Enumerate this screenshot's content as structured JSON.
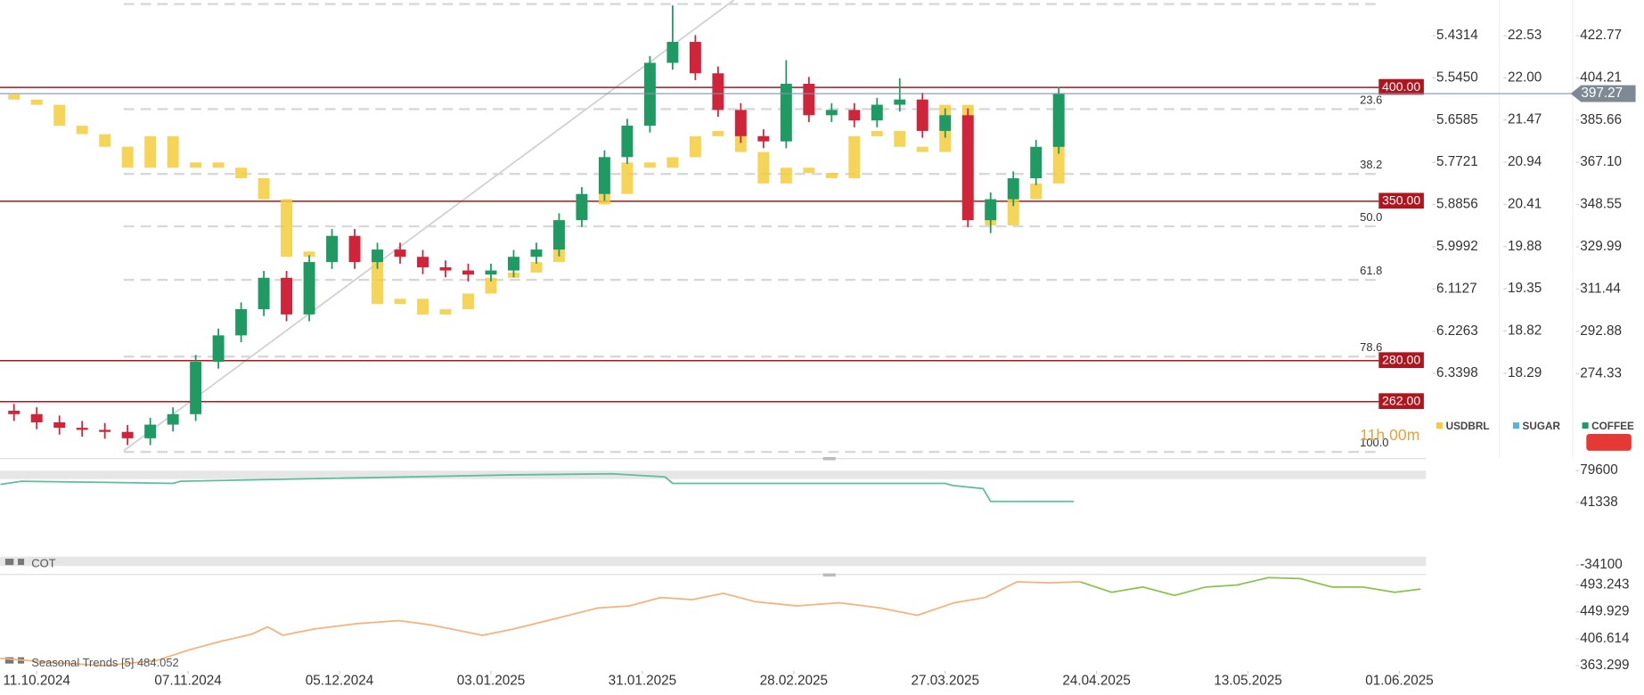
{
  "chart_data": [
    {
      "type": "candlestick",
      "x": [
        -3,
        0,
        3,
        6,
        9,
        12,
        15,
        18,
        21,
        24,
        27,
        30,
        33,
        36,
        39,
        42,
        45,
        48,
        51,
        54,
        57,
        60,
        63,
        66,
        69,
        72,
        75,
        78,
        81,
        84,
        87,
        90,
        93,
        96,
        99,
        102,
        105,
        108,
        111,
        114,
        117,
        120,
        123,
        126,
        129,
        132,
        135
      ],
      "xlim": [
        -4.85,
        183.5
      ],
      "xticks": [
        {
          "value": 0,
          "label": "11.10.2024"
        },
        {
          "value": 20,
          "label": "07.11.2024"
        },
        {
          "value": 40,
          "label": "05.12.2024"
        },
        {
          "value": 60,
          "label": "03.01.2025"
        },
        {
          "value": 80,
          "label": "31.01.2025"
        },
        {
          "value": 100,
          "label": "28.02.2025"
        },
        {
          "value": 120,
          "label": "27.03.2025"
        },
        {
          "value": 140,
          "label": "24.04.2025"
        },
        {
          "value": 160,
          "label": "13.05.2025"
        },
        {
          "value": 180,
          "label": "01.06.2025"
        }
      ],
      "series": [
        {
          "name": "USDBRL",
          "color": "#f5cd3a",
          "axis": "y2",
          "open": [
            5.59,
            5.6034,
            5.6175,
            5.6738,
            5.6964,
            5.7302,
            5.7866,
            5.702,
            5.7866,
            5.7725,
            5.7866,
            5.8148,
            5.8712,
            6.0262,
            6.0121,
            5.998,
            6.0121,
            6.1531,
            6.139,
            6.1813,
            6.1672,
            6.1249,
            6.0826,
            6.0685,
            6.0403,
            5.9275,
            5.8853,
            5.8571,
            5.7725,
            5.7866,
            5.7584,
            5.702,
            5.6879,
            5.7443,
            5.8289,
            5.7866,
            5.8007,
            5.8148,
            5.702,
            5.6879,
            5.7302,
            5.7443,
            5.6175,
            5.8853,
            5.9416,
            5.8712,
            5.8289
          ],
          "close": [
            5.6034,
            5.6175,
            5.6738,
            5.6964,
            5.7302,
            5.7866,
            5.702,
            5.7866,
            5.7725,
            5.7866,
            5.8148,
            5.8712,
            6.0262,
            6.0121,
            5.998,
            6.0121,
            6.1531,
            6.139,
            6.1813,
            6.1672,
            6.1249,
            6.0826,
            6.0685,
            6.0403,
            5.9275,
            5.8853,
            5.8571,
            5.7725,
            5.7866,
            5.7584,
            5.702,
            5.6879,
            5.7443,
            5.8289,
            5.7866,
            5.8007,
            5.8148,
            5.702,
            5.6879,
            5.7302,
            5.7443,
            5.6175,
            5.8853,
            5.9416,
            5.8712,
            5.8289,
            5.6738
          ]
        },
        {
          "name": "SUGAR",
          "color": "#4fb8e0",
          "axis": "y3"
        },
        {
          "name": "COFFEE",
          "color": "#1f9a62",
          "down_color": "#d0243a",
          "open": [
            258.0,
            256.5,
            252.9,
            250.5,
            249.6,
            248.7,
            245.9,
            251.9,
            256.5,
            279.5,
            291.1,
            302.6,
            316.4,
            300.3,
            323.3,
            334.8,
            323.3,
            328.8,
            325.6,
            321.0,
            319.6,
            317.8,
            319.6,
            325.6,
            328.8,
            341.7,
            353.2,
            369.4,
            383.2,
            410.8,
            420.0,
            406.2,
            390.1,
            378.6,
            376.3,
            401.6,
            387.8,
            390.1,
            385.5,
            392.4,
            394.7,
            380.9,
            387.8,
            341.7,
            350.9,
            360.1,
            373.9
          ],
          "high": [
            261.0,
            259.5,
            255.9,
            253.5,
            252.6,
            251.7,
            254.9,
            259.5,
            282.5,
            294.1,
            305.6,
            319.4,
            319.4,
            326.3,
            337.8,
            337.8,
            331.8,
            331.8,
            328.6,
            324.0,
            322.6,
            322.6,
            328.6,
            331.8,
            344.7,
            356.2,
            372.4,
            386.2,
            413.8,
            436.0,
            423.0,
            409.2,
            393.1,
            381.6,
            412.0,
            404.6,
            393.1,
            393.1,
            395.4,
            404.0,
            397.7,
            390.8,
            390.8,
            353.9,
            363.1,
            376.9,
            400.3
          ],
          "low": [
            253.5,
            249.9,
            247.5,
            246.6,
            245.7,
            242.9,
            242.9,
            248.9,
            253.5,
            276.5,
            288.1,
            299.6,
            297.3,
            297.3,
            320.3,
            320.3,
            320.3,
            322.6,
            318.0,
            316.6,
            314.8,
            314.8,
            316.6,
            322.6,
            325.8,
            338.7,
            350.2,
            366.4,
            380.2,
            407.8,
            403.2,
            387.1,
            375.6,
            373.3,
            373.3,
            384.8,
            384.8,
            382.5,
            382.5,
            389.4,
            377.9,
            377.9,
            338.7,
            336.0,
            347.9,
            357.1,
            370.9
          ],
          "close": [
            256.5,
            252.9,
            250.5,
            249.6,
            248.7,
            245.9,
            251.9,
            256.5,
            279.5,
            291.1,
            302.6,
            316.4,
            300.3,
            323.3,
            334.8,
            323.3,
            328.8,
            325.6,
            321.0,
            319.6,
            317.8,
            319.6,
            325.6,
            328.8,
            341.7,
            353.2,
            369.4,
            383.2,
            410.8,
            420.0,
            406.2,
            390.1,
            378.6,
            376.3,
            401.6,
            387.8,
            390.1,
            385.5,
            392.4,
            394.7,
            380.9,
            387.8,
            341.7,
            350.9,
            360.1,
            373.9,
            397.27
          ]
        }
      ],
      "ylim": [
        237.2,
        438.4
      ],
      "yticks": [
        422.77,
        404.21,
        385.66,
        {
          "value": 367.1,
          "label": "367.10"
        },
        348.55,
        329.99,
        311.44,
        292.88,
        274.33
      ],
      "y2lim": [
        6.5674,
        5.3356
      ],
      "y2ticks": [
        5.4314,
        {
          "value": 5.545,
          "label": "5.5450"
        },
        5.6585,
        5.7721,
        5.8856,
        5.9992,
        6.1127,
        6.2263,
        6.3398
      ],
      "y3lim": [
        17.223,
        22.978
      ],
      "y3ticks": [
        22.53,
        {
          "value": 22.0,
          "label": "22.00"
        },
        21.47,
        20.94,
        20.41,
        19.88,
        19.35,
        18.82,
        18.29
      ],
      "levels": [
        {
          "value": 400,
          "label": "400.00"
        },
        {
          "value": 350,
          "label": "350.00"
        },
        {
          "value": 280,
          "label": "280.00"
        },
        {
          "value": 262,
          "label": "262.00"
        }
      ],
      "level_color": "#b0141c",
      "last_price": {
        "value": 397.27,
        "label": "397.27"
      },
      "fib_levels": [
        {
          "value": 436.6
        },
        {
          "value": 390.5,
          "label": "23.6"
        },
        {
          "value": 362.0,
          "label": "38.2"
        },
        {
          "value": 339.0,
          "label": "50.0"
        },
        {
          "value": 315.5,
          "label": "61.8"
        },
        {
          "value": 281.8,
          "label": "78.6"
        },
        {
          "value": 239.9,
          "label": "100.0"
        }
      ],
      "countdown": "11h 00m"
    },
    {
      "type": "line",
      "label": "COT",
      "color": "#5cbf9c",
      "x": [
        -4.8,
        -2,
        18,
        19,
        63,
        76,
        83,
        84,
        120,
        121,
        125,
        126,
        137
      ],
      "values": [
        63025,
        66850,
        64300,
        66850,
        74500,
        75775,
        71950,
        64300,
        64300,
        61750,
        57925,
        42625,
        42625
      ],
      "xlim": [
        -4.85,
        183.5
      ],
      "ylim": [
        -41660,
        90940
      ],
      "yticks": [
        79600,
        41338,
        -34100
      ]
    },
    {
      "type": "line",
      "label": "Seasonal  Trends  [5]  484.052",
      "series": [
        {
          "color": "#f5b27a",
          "x": [
            -4.8,
            2.1,
            9.0,
            15.9,
            20.1,
            24.2,
            28.4,
            30.5,
            32.5,
            36.7,
            42.2,
            47.8,
            51.9,
            54.7,
            58.9,
            63.0,
            68.6,
            74.1,
            78.3,
            82.4,
            86.6,
            90.7,
            94.9,
            100.4,
            106.0,
            111.5,
            116.3,
            121.2,
            125.3,
            129.5,
            133.7,
            137.8
          ],
          "values": [
            375.1,
            368.4,
            363.3,
            371.7,
            388.6,
            402.1,
            413.9,
            425.7,
            412.2,
            422.4,
            430.8,
            435.9,
            429.1,
            422.4,
            412.2,
            422.4,
            439.2,
            456.1,
            459.5,
            473.0,
            469.6,
            479.7,
            466.2,
            459.5,
            464.6,
            456.1,
            444.3,
            464.6,
            473.0,
            498.3,
            496.6,
            498.3
          ]
        },
        {
          "color": "#8bc34a",
          "x": [
            137.8,
            142.0,
            146.1,
            150.3,
            154.4,
            158.6,
            162.7,
            166.9,
            171.1,
            175.2,
            179.4,
            182.8
          ],
          "values": [
            498.3,
            481.4,
            489.9,
            476.4,
            489.9,
            493.2,
            505.0,
            503.4,
            489.9,
            489.9,
            481.4,
            486.5
          ]
        }
      ],
      "xlim": [
        -4.85,
        183.5
      ],
      "ylim": [
        354.86,
        506.74
      ],
      "yticks": [
        493.243,
        449.929,
        406.614,
        363.299
      ]
    }
  ]
}
